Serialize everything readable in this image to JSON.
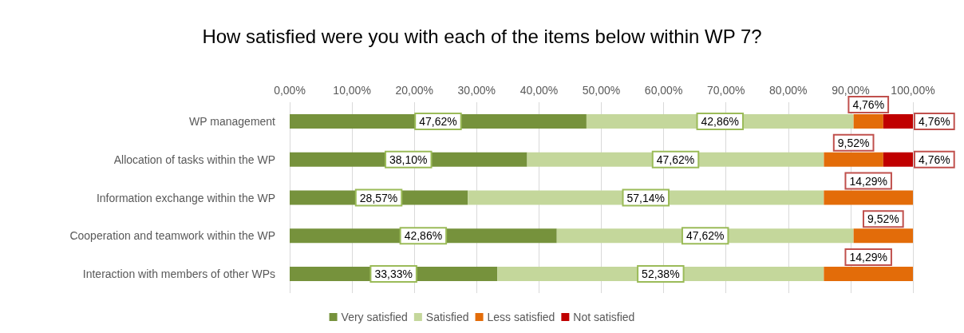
{
  "chart_data": {
    "type": "bar",
    "orientation": "horizontal",
    "stacked": true,
    "title": "How satisfied were you with each of the items below within WP 7?",
    "categories": [
      "WP management",
      "Allocation of tasks within the WP",
      "Information exchange within the WP",
      "Cooperation and teamwork within the WP",
      "Interaction with members of other WPs"
    ],
    "series": [
      {
        "name": "Very satisfied",
        "color": "#76923c",
        "values": [
          47.62,
          38.1,
          28.57,
          42.86,
          33.33
        ],
        "value_labels": [
          "47,62%",
          "38,10%",
          "28,57%",
          "42,86%",
          "33,33%"
        ]
      },
      {
        "name": "Satisfied",
        "color": "#c4d79b",
        "values": [
          42.86,
          47.62,
          57.14,
          47.62,
          52.38
        ],
        "value_labels": [
          "42,86%",
          "47,62%",
          "57,14%",
          "47,62%",
          "52,38%"
        ]
      },
      {
        "name": "Less satisfied",
        "color": "#e36c09",
        "values": [
          4.76,
          9.52,
          14.29,
          9.52,
          14.29
        ],
        "value_labels": [
          "4,76%",
          "9,52%",
          "14,29%",
          "9,52%",
          "14,29%"
        ]
      },
      {
        "name": "Not satisfied",
        "color": "#c00000",
        "values": [
          4.76,
          4.76,
          null,
          null,
          null
        ],
        "value_labels": [
          "4,76%",
          "4,76%",
          null,
          null,
          null
        ]
      }
    ],
    "xlim": [
      0,
      100
    ],
    "xticks": [
      {
        "value": 0,
        "label": "0,00%"
      },
      {
        "value": 10,
        "label": "10,00%"
      },
      {
        "value": 20,
        "label": "20,00%"
      },
      {
        "value": 30,
        "label": "30,00%"
      },
      {
        "value": 40,
        "label": "40,00%"
      },
      {
        "value": 50,
        "label": "50,00%"
      },
      {
        "value": 60,
        "label": "60,00%"
      },
      {
        "value": 70,
        "label": "70,00%"
      },
      {
        "value": 80,
        "label": "80,00%"
      },
      {
        "value": 90,
        "label": "90,00%"
      },
      {
        "value": 100,
        "label": "100,00%"
      }
    ],
    "grid": "x",
    "legend": "bottom"
  }
}
